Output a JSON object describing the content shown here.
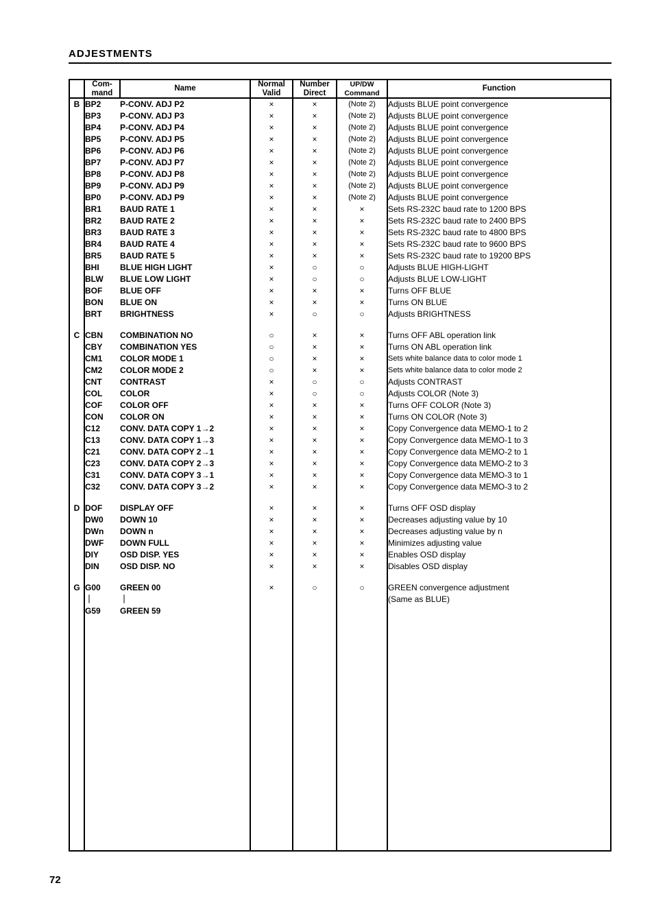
{
  "heading": "ADJESTMENTS",
  "page_number": "72",
  "columns": {
    "group": "",
    "command_l1": "Com-",
    "command_l2": "mand",
    "name": "Name",
    "normal_l1": "Normal",
    "normal_l2": "Valid",
    "number_l1": "Number",
    "number_l2": "Direct",
    "updw_l1": "UP/DW",
    "updw_l2": "Command",
    "function": "Function"
  },
  "marks": {
    "x": "×",
    "o": "○"
  },
  "groups": [
    {
      "letter": "B",
      "rows": [
        {
          "cmd": "BP2",
          "name": "P-CONV. ADJ P2",
          "nv": "×",
          "nd": "×",
          "ud": "(Note 2)",
          "fn": "Adjusts BLUE point convergence"
        },
        {
          "cmd": "BP3",
          "name": "P-CONV. ADJ P3",
          "nv": "×",
          "nd": "×",
          "ud": "(Note 2)",
          "fn": "Adjusts BLUE point convergence"
        },
        {
          "cmd": "BP4",
          "name": "P-CONV. ADJ P4",
          "nv": "×",
          "nd": "×",
          "ud": "(Note 2)",
          "fn": "Adjusts BLUE point convergence"
        },
        {
          "cmd": "BP5",
          "name": "P-CONV. ADJ P5",
          "nv": "×",
          "nd": "×",
          "ud": "(Note 2)",
          "fn": "Adjusts BLUE point convergence"
        },
        {
          "cmd": "BP6",
          "name": "P-CONV. ADJ P6",
          "nv": "×",
          "nd": "×",
          "ud": "(Note 2)",
          "fn": "Adjusts BLUE point convergence"
        },
        {
          "cmd": "BP7",
          "name": "P-CONV. ADJ P7",
          "nv": "×",
          "nd": "×",
          "ud": "(Note 2)",
          "fn": "Adjusts BLUE point convergence"
        },
        {
          "cmd": "BP8",
          "name": "P-CONV. ADJ P8",
          "nv": "×",
          "nd": "×",
          "ud": "(Note 2)",
          "fn": "Adjusts BLUE point convergence"
        },
        {
          "cmd": "BP9",
          "name": "P-CONV. ADJ P9",
          "nv": "×",
          "nd": "×",
          "ud": "(Note 2)",
          "fn": "Adjusts BLUE point convergence"
        },
        {
          "cmd": "BP0",
          "name": "P-CONV. ADJ P9",
          "nv": "×",
          "nd": "×",
          "ud": "(Note 2)",
          "fn": "Adjusts BLUE point convergence"
        },
        {
          "cmd": "BR1",
          "name": "BAUD RATE 1",
          "nv": "×",
          "nd": "×",
          "ud": "×",
          "fn": "Sets RS-232C baud rate to 1200 BPS"
        },
        {
          "cmd": "BR2",
          "name": "BAUD RATE 2",
          "nv": "×",
          "nd": "×",
          "ud": "×",
          "fn": "Sets RS-232C baud rate to 2400 BPS"
        },
        {
          "cmd": "BR3",
          "name": "BAUD RATE 3",
          "nv": "×",
          "nd": "×",
          "ud": "×",
          "fn": "Sets RS-232C baud rate to 4800 BPS"
        },
        {
          "cmd": "BR4",
          "name": "BAUD RATE 4",
          "nv": "×",
          "nd": "×",
          "ud": "×",
          "fn": "Sets RS-232C baud rate to 9600 BPS"
        },
        {
          "cmd": "BR5",
          "name": "BAUD RATE 5",
          "nv": "×",
          "nd": "×",
          "ud": "×",
          "fn": "Sets RS-232C baud rate to 19200 BPS"
        },
        {
          "cmd": "BHI",
          "name": "BLUE HIGH LIGHT",
          "nv": "×",
          "nd": "○",
          "ud": "○",
          "fn": "Adjusts BLUE HIGH-LIGHT"
        },
        {
          "cmd": "BLW",
          "name": "BLUE LOW LIGHT",
          "nv": "×",
          "nd": "○",
          "ud": "○",
          "fn": "Adjusts BLUE LOW-LIGHT"
        },
        {
          "cmd": "BOF",
          "name": "BLUE OFF",
          "nv": "×",
          "nd": "×",
          "ud": "×",
          "fn": "Turns OFF BLUE"
        },
        {
          "cmd": "BON",
          "name": "BLUE ON",
          "nv": "×",
          "nd": "×",
          "ud": "×",
          "fn": "Turns ON BLUE"
        },
        {
          "cmd": "BRT",
          "name": "BRIGHTNESS",
          "nv": "×",
          "nd": "○",
          "ud": "○",
          "fn": "Adjusts BRIGHTNESS"
        }
      ]
    },
    {
      "letter": "C",
      "rows": [
        {
          "cmd": "CBN",
          "name": "COMBINATION NO",
          "nv": "○",
          "nd": "×",
          "ud": "×",
          "fn": "Turns OFF ABL operation link"
        },
        {
          "cmd": "CBY",
          "name": "COMBINATION YES",
          "nv": "○",
          "nd": "×",
          "ud": "×",
          "fn": "Turns ON ABL operation link"
        },
        {
          "cmd": "CM1",
          "name": "COLOR MODE 1",
          "nv": "○",
          "nd": "×",
          "ud": "×",
          "fn": "Sets white balance data to color mode 1",
          "small": true
        },
        {
          "cmd": "CM2",
          "name": "COLOR MODE 2",
          "nv": "○",
          "nd": "×",
          "ud": "×",
          "fn": "Sets white balance data to color mode 2",
          "small": true
        },
        {
          "cmd": "CNT",
          "name": "CONTRAST",
          "nv": "×",
          "nd": "○",
          "ud": "○",
          "fn": "Adjusts CONTRAST"
        },
        {
          "cmd": "COL",
          "name": "COLOR",
          "nv": "×",
          "nd": "○",
          "ud": "○",
          "fn": "Adjusts COLOR (Note 3)"
        },
        {
          "cmd": "COF",
          "name": "COLOR OFF",
          "nv": "×",
          "nd": "×",
          "ud": "×",
          "fn": "Turns OFF COLOR (Note 3)"
        },
        {
          "cmd": "CON",
          "name": "COLOR ON",
          "nv": "×",
          "nd": "×",
          "ud": "×",
          "fn": "Turns ON COLOR (Note 3)"
        },
        {
          "cmd": "C12",
          "name": "CONV. DATA COPY 1→2",
          "nv": "×",
          "nd": "×",
          "ud": "×",
          "fn": "Copy Convergence data MEMO-1 to 2"
        },
        {
          "cmd": "C13",
          "name": "CONV. DATA COPY 1→3",
          "nv": "×",
          "nd": "×",
          "ud": "×",
          "fn": "Copy Convergence data MEMO-1 to 3"
        },
        {
          "cmd": "C21",
          "name": "CONV. DATA COPY 2→1",
          "nv": "×",
          "nd": "×",
          "ud": "×",
          "fn": "Copy Convergence data MEMO-2 to 1"
        },
        {
          "cmd": "C23",
          "name": "CONV. DATA COPY 2→3",
          "nv": "×",
          "nd": "×",
          "ud": "×",
          "fn": "Copy Convergence data MEMO-2 to 3"
        },
        {
          "cmd": "C31",
          "name": "CONV. DATA COPY 3→1",
          "nv": "×",
          "nd": "×",
          "ud": "×",
          "fn": "Copy Convergence data MEMO-3 to 1"
        },
        {
          "cmd": "C32",
          "name": "CONV. DATA COPY 3→2",
          "nv": "×",
          "nd": "×",
          "ud": "×",
          "fn": "Copy Convergence data MEMO-3 to 2"
        }
      ]
    },
    {
      "letter": "D",
      "rows": [
        {
          "cmd": "DOF",
          "name": "DISPLAY OFF",
          "nv": "×",
          "nd": "×",
          "ud": "×",
          "fn": "Turns OFF OSD display"
        },
        {
          "cmd": "DW0",
          "name": "DOWN 10",
          "nv": "×",
          "nd": "×",
          "ud": "×",
          "fn": "Decreases adjusting value by 10"
        },
        {
          "cmd": "DWn",
          "name": "DOWN n",
          "nv": "×",
          "nd": "×",
          "ud": "×",
          "fn": "Decreases adjusting value by n"
        },
        {
          "cmd": "DWF",
          "name": "DOWN FULL",
          "nv": "×",
          "nd": "×",
          "ud": "×",
          "fn": "Minimizes adjusting value"
        },
        {
          "cmd": "DIY",
          "name": "OSD DISP. YES",
          "nv": "×",
          "nd": "×",
          "ud": "×",
          "fn": "Enables OSD display"
        },
        {
          "cmd": "DIN",
          "name": "OSD DISP. NO",
          "nv": "×",
          "nd": "×",
          "ud": "×",
          "fn": "Disables OSD display"
        }
      ]
    },
    {
      "letter": "G",
      "rows": [
        {
          "cmd": "G00",
          "name": "GREEN 00",
          "nv": "×",
          "nd": "○",
          "ud": "○",
          "fn": "GREEN convergence adjustment"
        },
        {
          "cmd": "｜",
          "name": "｜",
          "nv": "",
          "nd": "",
          "ud": "",
          "fn": "(Same as BLUE)"
        },
        {
          "cmd": "G59",
          "name": "GREEN 59",
          "nv": "",
          "nd": "",
          "ud": "",
          "fn": ""
        }
      ]
    }
  ]
}
